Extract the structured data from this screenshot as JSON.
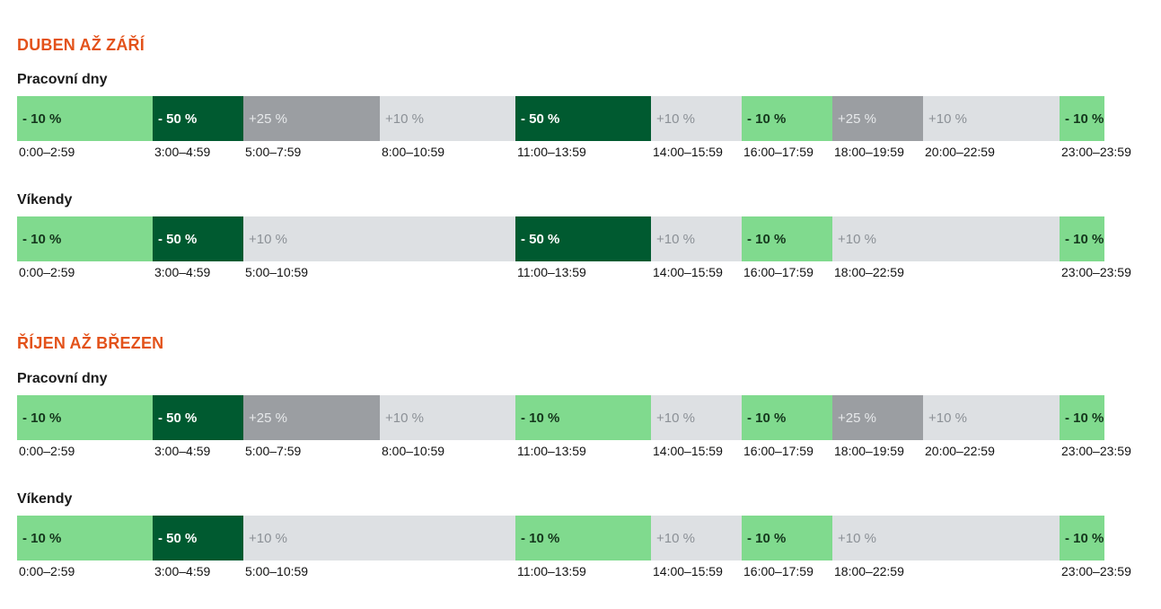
{
  "colors": {
    "title": "#e3521a",
    "green": "#80da8e",
    "dark_green": "#005a30",
    "light_gray": "#dde0e3",
    "mid_gray": "#9b9ea2"
  },
  "seasons": [
    {
      "title": "DUBEN AŽ ZÁŘÍ",
      "rows": [
        {
          "label": "Pracovní dny",
          "segments": [
            {
              "value": "- 10 %",
              "style": "green"
            },
            {
              "value": "- 50 %",
              "style": "dark_green"
            },
            {
              "value": "+25 %",
              "style": "mid_gray"
            },
            {
              "value": "+10 %",
              "style": "light_gray"
            },
            {
              "value": "- 50 %",
              "style": "dark_green"
            },
            {
              "value": "+10 %",
              "style": "light_gray"
            },
            {
              "value": "- 10 %",
              "style": "green"
            },
            {
              "value": "+25 %",
              "style": "mid_gray"
            },
            {
              "value": "+10 %",
              "style": "light_gray"
            },
            {
              "value": "- 10 %",
              "style": "green"
            }
          ],
          "times": [
            "0:00–2:59",
            "3:00–4:59",
            "5:00–7:59",
            "8:00–10:59",
            "11:00–13:59",
            "14:00–15:59",
            "16:00–17:59",
            "18:00–19:59",
            "20:00–22:59",
            "23:00–23:59"
          ]
        },
        {
          "label": "Víkendy",
          "segments": [
            {
              "value": "- 10 %",
              "style": "green"
            },
            {
              "value": "- 50 %",
              "style": "dark_green"
            },
            {
              "value": "+10 %",
              "style": "light_gray"
            },
            {
              "value": "- 50 %",
              "style": "dark_green"
            },
            {
              "value": "+10 %",
              "style": "light_gray"
            },
            {
              "value": "- 10 %",
              "style": "green"
            },
            {
              "value": "+10 %",
              "style": "light_gray"
            },
            {
              "value": "- 10 %",
              "style": "green"
            }
          ],
          "times": [
            "0:00–2:59",
            "3:00–4:59",
            "5:00–10:59",
            "11:00–13:59",
            "14:00–15:59",
            "16:00–17:59",
            "18:00–22:59",
            "23:00–23:59"
          ]
        }
      ]
    },
    {
      "title": "ŘÍJEN AŽ BŘEZEN",
      "rows": [
        {
          "label": "Pracovní dny",
          "segments": [
            {
              "value": "- 10 %",
              "style": "green"
            },
            {
              "value": "- 50 %",
              "style": "dark_green"
            },
            {
              "value": "+25 %",
              "style": "mid_gray"
            },
            {
              "value": "+10 %",
              "style": "light_gray"
            },
            {
              "value": "- 10 %",
              "style": "green"
            },
            {
              "value": "+10 %",
              "style": "light_gray"
            },
            {
              "value": "- 10 %",
              "style": "green"
            },
            {
              "value": "+25 %",
              "style": "mid_gray"
            },
            {
              "value": "+10 %",
              "style": "light_gray"
            },
            {
              "value": "- 10 %",
              "style": "green"
            }
          ],
          "times": [
            "0:00–2:59",
            "3:00–4:59",
            "5:00–7:59",
            "8:00–10:59",
            "11:00–13:59",
            "14:00–15:59",
            "16:00–17:59",
            "18:00–19:59",
            "20:00–22:59",
            "23:00–23:59"
          ]
        },
        {
          "label": "Víkendy",
          "segments": [
            {
              "value": "- 10 %",
              "style": "green"
            },
            {
              "value": "- 50 %",
              "style": "dark_green"
            },
            {
              "value": "+10 %",
              "style": "light_gray"
            },
            {
              "value": "- 10 %",
              "style": "green"
            },
            {
              "value": "+10 %",
              "style": "light_gray"
            },
            {
              "value": "- 10 %",
              "style": "green"
            },
            {
              "value": "+10 %",
              "style": "light_gray"
            },
            {
              "value": "- 10 %",
              "style": "green"
            }
          ],
          "times": [
            "0:00–2:59",
            "3:00–4:59",
            "5:00–10:59",
            "11:00–13:59",
            "14:00–15:59",
            "16:00–17:59",
            "18:00–22:59",
            "23:00–23:59"
          ]
        }
      ]
    }
  ]
}
